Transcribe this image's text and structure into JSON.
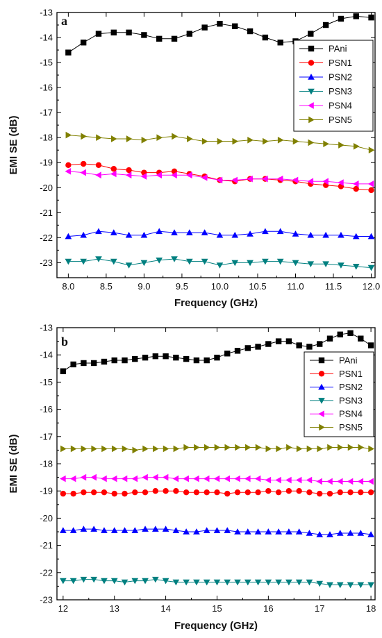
{
  "colors": {
    "PAni": "#000000",
    "PSN1": "#ff0000",
    "PSN2": "#0000ff",
    "PSN3": "#008080",
    "PSN4": "#ff00ff",
    "PSN5": "#808000"
  },
  "markers": {
    "PAni": "square",
    "PSN1": "circle",
    "PSN2": "triangle-up",
    "PSN3": "triangle-down",
    "PSN4": "triangle-left",
    "PSN5": "triangle-right"
  },
  "chart_data": [
    {
      "type": "line",
      "panel": "a",
      "xlabel": "Frequency (GHz)",
      "ylabel": "EMI SE (dB)",
      "xlim": [
        7.85,
        12.05
      ],
      "ylim": [
        -23.6,
        -13.0
      ],
      "xticks": [
        8.0,
        8.5,
        9.0,
        9.5,
        10.0,
        10.5,
        11.0,
        11.5,
        12.0
      ],
      "xtick_labels": [
        "8.0",
        "8.5",
        "9.0",
        "9.5",
        "10.0",
        "10.5",
        "11.0",
        "11.5",
        "12.0"
      ],
      "yticks": [
        -23,
        -22,
        -21,
        -20,
        -19,
        -18,
        -17,
        -16,
        -15,
        -14,
        -13
      ],
      "ytick_labels": [
        "-23",
        "-22",
        "-21",
        "-20",
        "-19",
        "-18",
        "-17",
        "-16",
        "-15",
        "-14",
        "-13"
      ],
      "legend_position": "top-right",
      "grid": false,
      "x": [
        8.0,
        8.2,
        8.4,
        8.6,
        8.8,
        9.0,
        9.2,
        9.4,
        9.6,
        9.8,
        10.0,
        10.2,
        10.4,
        10.6,
        10.8,
        11.0,
        11.2,
        11.4,
        11.6,
        11.8,
        12.0
      ],
      "series": [
        {
          "name": "PAni",
          "values": [
            -14.6,
            -14.2,
            -13.85,
            -13.8,
            -13.8,
            -13.9,
            -14.05,
            -14.05,
            -13.85,
            -13.6,
            -13.45,
            -13.55,
            -13.75,
            -14.0,
            -14.2,
            -14.15,
            -13.85,
            -13.5,
            -13.25,
            -13.15,
            -13.2
          ]
        },
        {
          "name": "PSN1",
          "values": [
            -19.1,
            -19.05,
            -19.1,
            -19.25,
            -19.3,
            -19.4,
            -19.4,
            -19.35,
            -19.45,
            -19.55,
            -19.7,
            -19.75,
            -19.65,
            -19.65,
            -19.7,
            -19.75,
            -19.85,
            -19.9,
            -19.95,
            -20.05,
            -20.1
          ]
        },
        {
          "name": "PSN2",
          "values": [
            -21.95,
            -21.9,
            -21.75,
            -21.8,
            -21.9,
            -21.9,
            -21.75,
            -21.8,
            -21.8,
            -21.8,
            -21.9,
            -21.9,
            -21.85,
            -21.75,
            -21.75,
            -21.85,
            -21.9,
            -21.9,
            -21.9,
            -21.95,
            -21.95
          ]
        },
        {
          "name": "PSN3",
          "values": [
            -22.95,
            -22.95,
            -22.85,
            -22.95,
            -23.1,
            -23.0,
            -22.9,
            -22.85,
            -22.95,
            -22.95,
            -23.1,
            -23.0,
            -23.0,
            -22.95,
            -22.95,
            -23.0,
            -23.05,
            -23.05,
            -23.1,
            -23.15,
            -23.2
          ]
        },
        {
          "name": "PSN4",
          "values": [
            -19.35,
            -19.4,
            -19.5,
            -19.45,
            -19.5,
            -19.55,
            -19.5,
            -19.5,
            -19.5,
            -19.6,
            -19.7,
            -19.7,
            -19.65,
            -19.65,
            -19.65,
            -19.7,
            -19.75,
            -19.75,
            -19.8,
            -19.85,
            -19.85
          ]
        },
        {
          "name": "PSN5",
          "values": [
            -17.9,
            -17.95,
            -18.0,
            -18.05,
            -18.05,
            -18.1,
            -18.0,
            -17.95,
            -18.05,
            -18.15,
            -18.15,
            -18.15,
            -18.1,
            -18.15,
            -18.1,
            -18.15,
            -18.2,
            -18.25,
            -18.3,
            -18.35,
            -18.5
          ]
        }
      ]
    },
    {
      "type": "line",
      "panel": "b",
      "xlabel": "Frequency (GHz)",
      "ylabel": "EMI SE (dB)",
      "xlim": [
        11.88,
        18.08
      ],
      "ylim": [
        -23.0,
        -13.0
      ],
      "xticks": [
        12,
        13,
        14,
        15,
        16,
        17,
        18
      ],
      "xtick_labels": [
        "12",
        "13",
        "14",
        "15",
        "16",
        "17",
        "18"
      ],
      "yticks": [
        -23,
        -22,
        -21,
        -20,
        -19,
        -18,
        -17,
        -16,
        -15,
        -14,
        -13
      ],
      "ytick_labels": [
        "-23",
        "-22",
        "-21",
        "-20",
        "-19",
        "-18",
        "-17",
        "-16",
        "-15",
        "-14",
        "-13"
      ],
      "legend_position": "top-right",
      "grid": false,
      "x": [
        12.0,
        12.2,
        12.4,
        12.6,
        12.8,
        13.0,
        13.2,
        13.4,
        13.6,
        13.8,
        14.0,
        14.2,
        14.4,
        14.6,
        14.8,
        15.0,
        15.2,
        15.4,
        15.6,
        15.8,
        16.0,
        16.2,
        16.4,
        16.6,
        16.8,
        17.0,
        17.2,
        17.4,
        17.6,
        17.8,
        18.0
      ],
      "series": [
        {
          "name": "PAni",
          "values": [
            -14.6,
            -14.35,
            -14.3,
            -14.3,
            -14.25,
            -14.2,
            -14.2,
            -14.15,
            -14.1,
            -14.05,
            -14.05,
            -14.1,
            -14.15,
            -14.2,
            -14.2,
            -14.1,
            -13.95,
            -13.85,
            -13.75,
            -13.7,
            -13.6,
            -13.5,
            -13.5,
            -13.65,
            -13.7,
            -13.6,
            -13.4,
            -13.25,
            -13.2,
            -13.4,
            -13.65
          ]
        },
        {
          "name": "PSN1",
          "values": [
            -19.1,
            -19.1,
            -19.05,
            -19.05,
            -19.05,
            -19.1,
            -19.1,
            -19.05,
            -19.05,
            -19.0,
            -19.0,
            -19.0,
            -19.05,
            -19.05,
            -19.05,
            -19.05,
            -19.1,
            -19.05,
            -19.05,
            -19.05,
            -19.0,
            -19.05,
            -19.0,
            -19.0,
            -19.05,
            -19.1,
            -19.1,
            -19.05,
            -19.05,
            -19.05,
            -19.05
          ]
        },
        {
          "name": "PSN2",
          "values": [
            -20.45,
            -20.45,
            -20.4,
            -20.4,
            -20.45,
            -20.45,
            -20.45,
            -20.45,
            -20.4,
            -20.4,
            -20.4,
            -20.45,
            -20.5,
            -20.5,
            -20.45,
            -20.45,
            -20.45,
            -20.5,
            -20.5,
            -20.5,
            -20.5,
            -20.5,
            -20.5,
            -20.5,
            -20.55,
            -20.6,
            -20.6,
            -20.55,
            -20.55,
            -20.55,
            -20.6
          ]
        },
        {
          "name": "PSN3",
          "values": [
            -22.3,
            -22.3,
            -22.25,
            -22.25,
            -22.3,
            -22.3,
            -22.35,
            -22.3,
            -22.3,
            -22.25,
            -22.3,
            -22.35,
            -22.35,
            -22.35,
            -22.35,
            -22.35,
            -22.35,
            -22.35,
            -22.35,
            -22.35,
            -22.35,
            -22.35,
            -22.35,
            -22.35,
            -22.35,
            -22.4,
            -22.45,
            -22.45,
            -22.45,
            -22.45,
            -22.45
          ]
        },
        {
          "name": "PSN4",
          "values": [
            -18.55,
            -18.55,
            -18.5,
            -18.5,
            -18.55,
            -18.55,
            -18.55,
            -18.55,
            -18.5,
            -18.5,
            -18.5,
            -18.55,
            -18.55,
            -18.55,
            -18.55,
            -18.55,
            -18.55,
            -18.55,
            -18.55,
            -18.55,
            -18.6,
            -18.6,
            -18.6,
            -18.6,
            -18.6,
            -18.65,
            -18.65,
            -18.65,
            -18.65,
            -18.65,
            -18.65
          ]
        },
        {
          "name": "PSN5",
          "values": [
            -17.45,
            -17.45,
            -17.45,
            -17.45,
            -17.45,
            -17.45,
            -17.45,
            -17.5,
            -17.45,
            -17.45,
            -17.45,
            -17.45,
            -17.4,
            -17.4,
            -17.4,
            -17.4,
            -17.4,
            -17.4,
            -17.4,
            -17.4,
            -17.45,
            -17.45,
            -17.4,
            -17.45,
            -17.45,
            -17.45,
            -17.4,
            -17.4,
            -17.4,
            -17.4,
            -17.45
          ]
        }
      ]
    }
  ]
}
